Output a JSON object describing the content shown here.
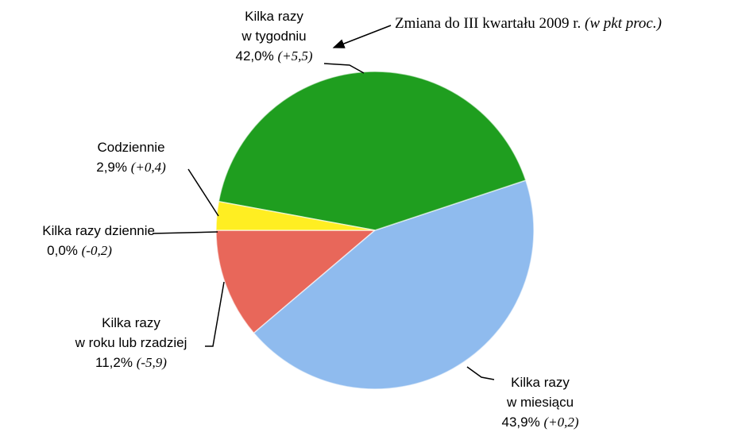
{
  "chart_data": {
    "type": "pie",
    "annotation": {
      "text": "Zmiana do III kwartału 2009 r.",
      "unit": "(w pkt proc.)"
    },
    "categories": [
      "Kilka razy dziennie",
      "Kilka razy\nw roku lub rzadziej",
      "Kilka razy\nw miesiącu",
      "Kilka razy\nw tygodniu",
      "Codziennie"
    ],
    "values": [
      0.0,
      11.2,
      43.9,
      42.0,
      2.9
    ],
    "value_labels": [
      "0,0%",
      "11,2%",
      "43,9%",
      "42,0%",
      "2,9%"
    ],
    "change_labels": [
      "(-0,2)",
      "(-5,9)",
      "(+0,2)",
      "(+5,5)",
      "(+0,4)"
    ],
    "colors": [
      "#d9d9d9",
      "#e8675a",
      "#8fbbee",
      "#1f9e1f",
      "#ffee22"
    ]
  }
}
